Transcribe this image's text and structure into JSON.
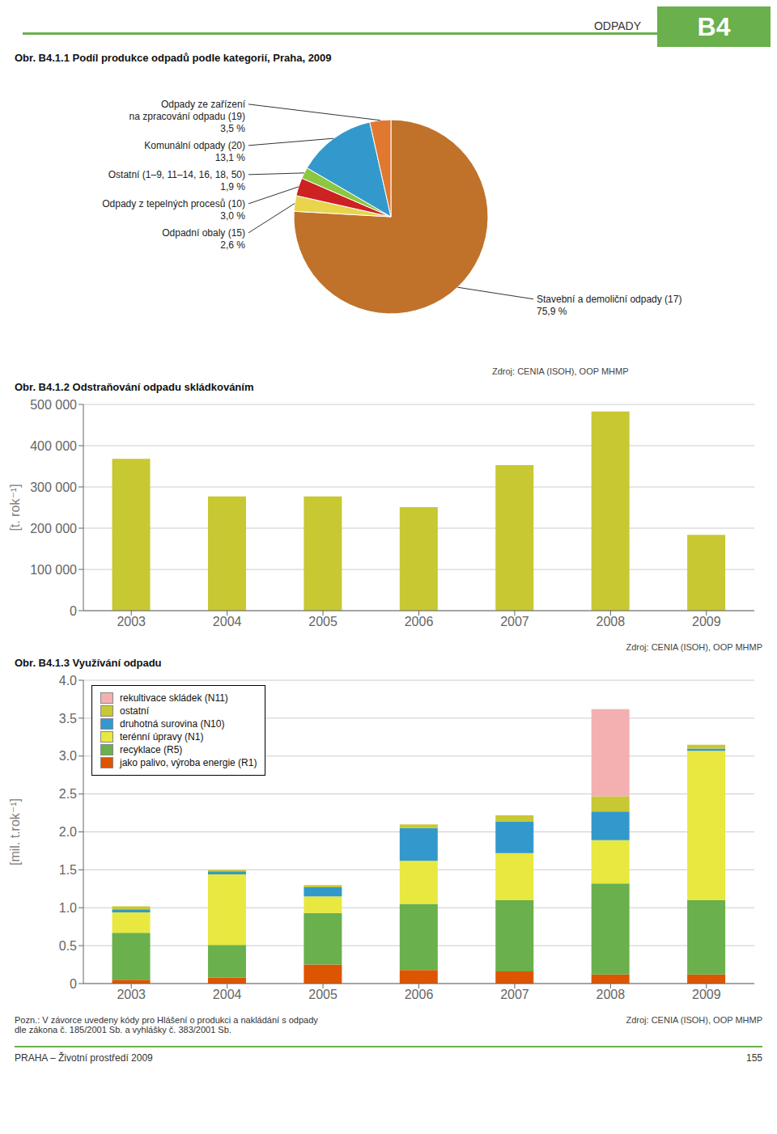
{
  "annotations": [
    "ODPADY",
    "B4",
    "PRAHA – Životní prostředí 2009",
    "155"
  ],
  "chart_data": [
    {
      "type": "pie",
      "title": "Obr. B4.1.1  Podíl produkce odpadů podle kategorií, Praha, 2009",
      "categories": [
        "Stavební a demoliční odpady (17)",
        "Odpadní obaly (15)",
        "Odpady z tepelných procesů (10)",
        "Ostatní (1–9, 11–14, 16, 18, 50)",
        "Komunální odpady (20)",
        "Odpady ze zařízení\nna zpracování odpadu (19)"
      ],
      "values": [
        75.9,
        2.6,
        3.0,
        1.9,
        13.1,
        3.5
      ],
      "value_labels": [
        "75,9 %",
        "2,6 %",
        "3,0 %",
        "1,9 %",
        "13,1 %",
        "3,5 %"
      ],
      "colors": [
        "#c0722a",
        "#e8d44d",
        "#cc2222",
        "#8dc63f",
        "#3399cc",
        "#e07830"
      ],
      "annotations": [
        "Zdroj: CENIA (ISOH), OOP MHMP"
      ]
    },
    {
      "type": "bar",
      "title": "Obr. B4.1.2  Odstraňování odpadu skládkováním",
      "categories": [
        "2003",
        "2004",
        "2005",
        "2006",
        "2007",
        "2008",
        "2009"
      ],
      "values": [
        368000,
        277000,
        277000,
        251000,
        353000,
        483000,
        184000
      ],
      "color": "#c8c832",
      "ylabel": "[t. rok⁻¹]",
      "ylim": [
        0,
        500000
      ],
      "yticks": [
        0,
        {
          "value": 100000,
          "label": "100 000"
        },
        {
          "value": 200000,
          "label": "200 000"
        },
        {
          "value": 300000,
          "label": "300 000"
        },
        {
          "value": 400000,
          "label": "400 000"
        },
        {
          "value": 500000,
          "label": "500 000"
        }
      ],
      "grid": true,
      "annotations": [
        "Zdroj: CENIA (ISOH), OOP MHMP"
      ]
    },
    {
      "type": "bar",
      "stacked": true,
      "title": "Obr. B4.1.3  Využívání odpadu",
      "categories": [
        "2003",
        "2004",
        "2005",
        "2006",
        "2007",
        "2008",
        "2009"
      ],
      "series": [
        {
          "name": "jako palivo, výroba energie (R1)",
          "color": "#dd5500",
          "values": [
            0.05,
            0.08,
            0.25,
            0.18,
            0.16,
            0.12,
            0.12
          ]
        },
        {
          "name": "recyklace (R5)",
          "color": "#6ab04c",
          "values": [
            0.62,
            0.43,
            0.68,
            0.87,
            0.94,
            1.2,
            0.98
          ]
        },
        {
          "name": "terénní úpravy (N1)",
          "color": "#e8e840",
          "values": [
            0.27,
            0.93,
            0.22,
            0.57,
            0.62,
            0.57,
            1.97
          ]
        },
        {
          "name": "druhotná surovina (N10)",
          "color": "#3399cc",
          "values": [
            0.04,
            0.04,
            0.12,
            0.43,
            0.42,
            0.38,
            0.03
          ]
        },
        {
          "name": "ostatní",
          "color": "#c8c832",
          "values": [
            0.04,
            0.02,
            0.03,
            0.05,
            0.08,
            0.2,
            0.05
          ]
        },
        {
          "name": "rekultivace skládek (N11)",
          "color": "#f4b0b0",
          "values": [
            0.0,
            0.0,
            0.0,
            0.0,
            0.0,
            1.15,
            0.0
          ]
        }
      ],
      "ylabel": "[mil. t.rok⁻¹]",
      "ylim": [
        0,
        4.0
      ],
      "yticks": [
        0,
        0.5,
        {
          "value": 1,
          "label": "1.0"
        },
        1.5,
        {
          "value": 2,
          "label": "2.0"
        },
        2.5,
        {
          "value": 3,
          "label": "3.0"
        },
        3.5,
        {
          "value": 4,
          "label": "4.0"
        }
      ],
      "grid": true,
      "legend": "upper left",
      "annotations": [
        "Pozn.: V závorce uvedeny kódy pro Hlášení o produkci a nakládání s odpady\ndle zákona č. 185/2001 Sb. a vyhlášky č. 383/2001 Sb.",
        "Zdroj: CENIA (ISOH), OOP MHMP"
      ]
    }
  ]
}
